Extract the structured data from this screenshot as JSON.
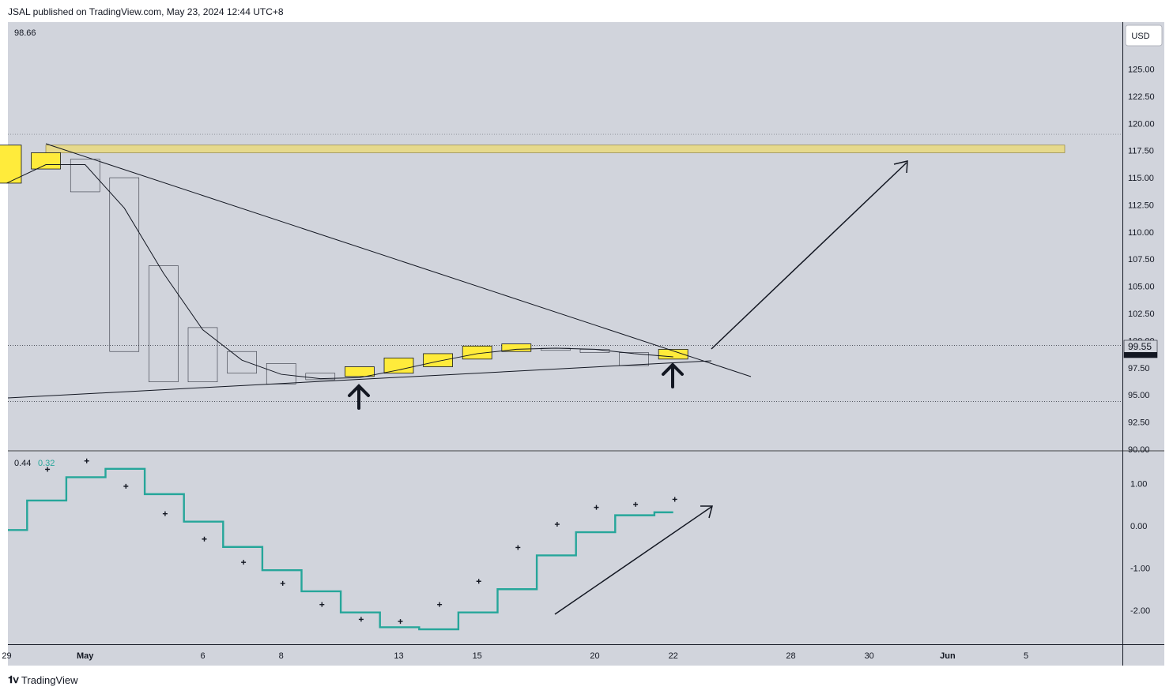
{
  "header": {
    "publish_line": "JSAL published on TradingView.com, May 23, 2024 12:44 UTC+8"
  },
  "footer": {
    "brand": "TradingView"
  },
  "price_panel": {
    "currency_button": "USD",
    "top_left_value": "98.66",
    "last_price_label": "99.55"
  },
  "indicator_panel": {
    "value_1": "0.44",
    "value_2": "0.32"
  },
  "colors": {
    "background": "#d1d4dc",
    "up_candle": "#ffeb3b",
    "indicator_line": "#26a69a",
    "zone": "#e6d98c"
  },
  "chart_data": [
    {
      "type": "candlestick",
      "y_axis_ticks": [
        "125.00",
        "122.50",
        "120.00",
        "117.50",
        "115.00",
        "112.50",
        "110.00",
        "107.50",
        "105.00",
        "102.50",
        "100.00",
        "97.50",
        "95.00",
        "92.50",
        "90.00"
      ],
      "x_axis_ticks": [
        "29",
        "May",
        "6",
        "8",
        "13",
        "15",
        "20",
        "22",
        "28",
        "30",
        "Jun",
        "5"
      ],
      "ylim": [
        90,
        128
      ],
      "candles": [
        {
          "open": 114.5,
          "close": 118.0,
          "high": 118.0,
          "low": 113.6,
          "dir": "up"
        },
        {
          "open": 115.8,
          "close": 117.3,
          "high": 118.2,
          "low": 115.8,
          "dir": "up"
        },
        {
          "open": 116.7,
          "close": 113.7,
          "high": 116.7,
          "low": 113.4,
          "dir": "down"
        },
        {
          "open": 115.0,
          "close": 99.0,
          "high": 115.0,
          "low": 99.0,
          "dir": "down"
        },
        {
          "open": 106.9,
          "close": 96.2,
          "high": 106.9,
          "low": 96.2,
          "dir": "down"
        },
        {
          "open": 101.2,
          "close": 96.2,
          "high": 101.2,
          "low": 96.2,
          "dir": "down"
        },
        {
          "open": 99.0,
          "close": 97.0,
          "high": 99.0,
          "low": 97.0,
          "dir": "down"
        },
        {
          "open": 97.9,
          "close": 96.0,
          "high": 97.9,
          "low": 96.0,
          "dir": "down"
        },
        {
          "open": 97.0,
          "close": 96.4,
          "high": 97.0,
          "low": 96.4,
          "dir": "down"
        },
        {
          "open": 96.7,
          "close": 97.6,
          "high": 97.6,
          "low": 96.7,
          "dir": "up"
        },
        {
          "open": 97.0,
          "close": 98.4,
          "high": 98.4,
          "low": 97.0,
          "dir": "up"
        },
        {
          "open": 97.6,
          "close": 98.8,
          "high": 98.8,
          "low": 97.6,
          "dir": "up"
        },
        {
          "open": 98.3,
          "close": 99.5,
          "high": 99.5,
          "low": 98.3,
          "dir": "up"
        },
        {
          "open": 99.0,
          "close": 99.7,
          "high": 99.7,
          "low": 99.0,
          "dir": "up"
        },
        {
          "open": 99.3,
          "close": 99.1,
          "high": 99.3,
          "low": 99.1,
          "dir": "down"
        },
        {
          "open": 99.2,
          "close": 98.9,
          "high": 99.2,
          "low": 98.9,
          "dir": "down"
        },
        {
          "open": 98.9,
          "close": 97.7,
          "high": 98.9,
          "low": 97.7,
          "dir": "down"
        },
        {
          "open": 98.3,
          "close": 99.2,
          "high": 99.2,
          "low": 98.3,
          "dir": "up"
        }
      ],
      "moving_average": [
        114.5,
        116.2,
        116.2,
        112.2,
        106.2,
        101.0,
        98.2,
        96.9,
        96.5,
        96.6,
        97.3,
        98.1,
        98.8,
        99.2,
        99.3,
        99.2,
        98.8,
        98.5
      ],
      "zone": {
        "low": 117.3,
        "high": 118.0
      },
      "dotted_levels": [
        119.0,
        99.55,
        94.4
      ]
    },
    {
      "type": "line",
      "y_axis_ticks": [
        "1.00",
        "0.00",
        "-1.00",
        "-2.00"
      ],
      "ylim": [
        -2.6,
        1.6
      ],
      "step_values": [
        -0.1,
        0.6,
        1.15,
        1.35,
        0.75,
        0.1,
        -0.5,
        -1.05,
        -1.55,
        -2.05,
        -2.4,
        -2.45,
        -2.05,
        -1.5,
        -0.7,
        -0.15,
        0.25,
        0.32
      ],
      "cross_values": [
        null,
        1.15,
        1.35,
        0.75,
        0.1,
        -0.5,
        -1.05,
        -1.55,
        -2.05,
        -2.4,
        -2.45,
        -2.05,
        -1.5,
        -0.7,
        -0.15,
        0.25,
        0.32,
        0.44
      ]
    }
  ]
}
